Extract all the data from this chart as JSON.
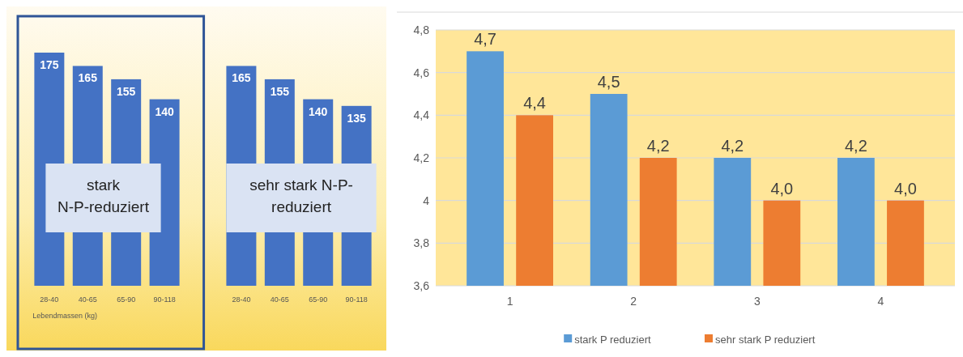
{
  "chart_data": [
    {
      "type": "bar",
      "categories": [
        "28-40",
        "40-65",
        "65-90",
        "90-118",
        null,
        "28-40",
        "40-65",
        "65-90",
        "90-118"
      ],
      "xlabel": "Lebendmassen (kg)",
      "values": [
        175,
        165,
        155,
        140,
        null,
        165,
        155,
        140,
        135
      ],
      "color": "#4472c4",
      "data_labels": true,
      "tick_labels": "x",
      "annotations": [
        "stark N-P-reduziert",
        "sehr stark N-P-reduziert"
      ]
    },
    {
      "type": "bar",
      "categories": [
        "1",
        "2",
        "3",
        "4"
      ],
      "series": [
        {
          "name": "stark P reduziert",
          "color": "#5b9bd5",
          "values": [
            4.7,
            4.5,
            4.2,
            4.2
          ],
          "value_labels": [
            "4,7",
            "4,5",
            "4,2",
            "4,2"
          ]
        },
        {
          "name": "sehr stark P reduziert",
          "color": "#ed7d31",
          "values": [
            4.4,
            4.2,
            4.0,
            4.0
          ],
          "value_labels": [
            "4,4",
            "4,2",
            "4,0",
            "4,0"
          ]
        }
      ],
      "ylim": [
        3.6,
        4.8
      ],
      "yticks": [
        {
          "value": 3.6,
          "label": "3,6"
        },
        {
          "value": 3.8,
          "label": "3,8"
        },
        4,
        {
          "value": 4.2,
          "label": "4,2"
        },
        {
          "value": 4.4,
          "label": "4,4"
        },
        {
          "value": 4.6,
          "label": "4,6"
        },
        {
          "value": 4.8,
          "label": "4,8"
        }
      ],
      "grid": "y",
      "legend": "bottom"
    }
  ]
}
